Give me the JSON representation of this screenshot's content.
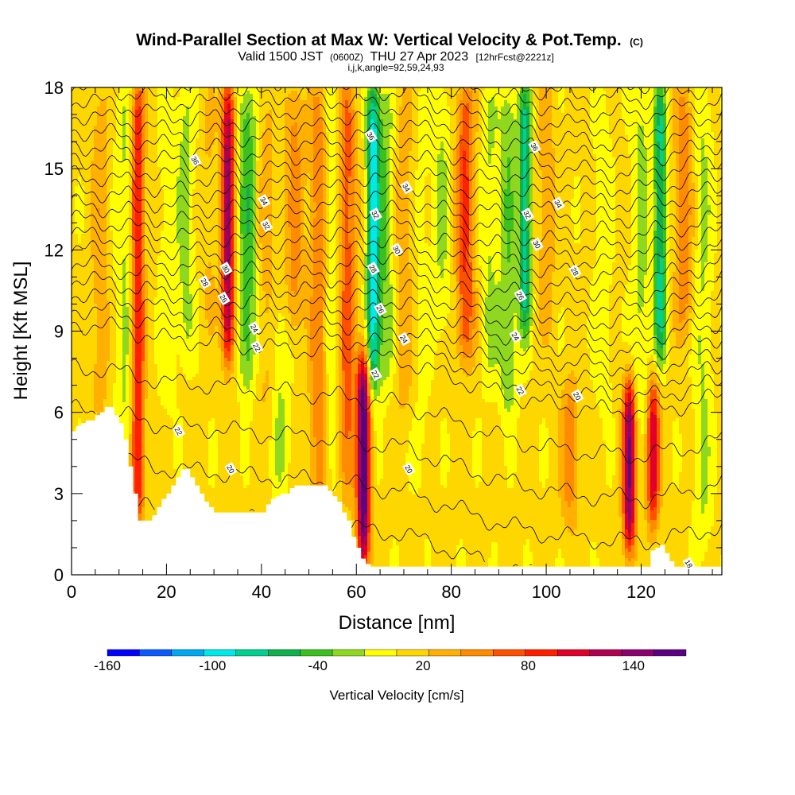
{
  "title": {
    "line1_main": "Wind-Parallel Section at Max W: Vertical Velocity & Pot.Temp.",
    "line1_mark": "(C)",
    "line2_part1": "Valid 1500 JST",
    "line2_part2": "(0600Z)",
    "line2_part3": "THU 27 Apr 2023",
    "line2_part4": "[12hrFcst@2221z]",
    "line3": "i,j,k,angle=92,59,24,93"
  },
  "chart_data": {
    "type": "heatmap",
    "xlabel": "Distance [nm]",
    "ylabel": "Height [Kft MSL]",
    "xlim": [
      0,
      137
    ],
    "ylim": [
      0,
      18
    ],
    "x_ticks": [
      0,
      20,
      40,
      60,
      80,
      100,
      120
    ],
    "x_tick_labels": [
      "0",
      "20",
      "40",
      "60",
      "80",
      "100",
      "120"
    ],
    "y_ticks": [
      0,
      3,
      6,
      9,
      12,
      15,
      18
    ],
    "y_tick_labels": [
      "0",
      "3",
      "6",
      "9",
      "12",
      "15",
      "18"
    ],
    "colorbar": {
      "title": "Vertical Velocity [cm/s]",
      "range": [
        -160,
        170
      ],
      "labels": [
        "-160",
        "-100",
        "-40",
        "20",
        "80",
        "140"
      ],
      "label_values": [
        -160,
        -100,
        -40,
        20,
        80,
        140
      ],
      "colors": [
        "#0000ff",
        "#0a5aff",
        "#00a8f0",
        "#00e8e8",
        "#00d090",
        "#10b050",
        "#3cc020",
        "#90d820",
        "#ffff00",
        "#ffd700",
        "#ffb000",
        "#ff8c00",
        "#ff5000",
        "#ff2000",
        "#e0002a",
        "#b00050",
        "#8c0070",
        "#5a0080"
      ]
    },
    "velocity_field": {
      "background_cm_s": 10,
      "cores": [
        {
          "x": 6,
          "z_from": 6,
          "z_to": 18,
          "w": 25
        },
        {
          "x": 11,
          "z_from": 4,
          "z_to": 18,
          "w": -25
        },
        {
          "x": 14,
          "z_from": 2,
          "z_to": 18,
          "w": 90
        },
        {
          "x": 20,
          "z_from": 6,
          "z_to": 18,
          "w": -15
        },
        {
          "x": 24,
          "z_from": 8,
          "z_to": 18,
          "w": -30
        },
        {
          "x": 29,
          "z_from": 9,
          "z_to": 18,
          "w": 15
        },
        {
          "x": 33,
          "z_from": 8,
          "z_to": 18,
          "w": 125
        },
        {
          "x": 37,
          "z_from": 7,
          "z_to": 18,
          "w": -55
        },
        {
          "x": 41,
          "z_from": 6,
          "z_to": 18,
          "w": 20
        },
        {
          "x": 44,
          "z_from": 3,
          "z_to": 10,
          "w": -25
        },
        {
          "x": 47,
          "z_from": 9,
          "z_to": 18,
          "w": 40
        },
        {
          "x": 52,
          "z_from": 2,
          "z_to": 18,
          "w": 45
        },
        {
          "x": 55,
          "z_from": 3,
          "z_to": 18,
          "w": -25
        },
        {
          "x": 58,
          "z_from": 3,
          "z_to": 18,
          "w": 60
        },
        {
          "x": 61.5,
          "z_from": 0.5,
          "z_to": 8,
          "w": 165
        },
        {
          "x": 63.5,
          "z_from": 7,
          "z_to": 18,
          "w": -105
        },
        {
          "x": 66,
          "z_from": 7,
          "z_to": 18,
          "w": -40
        },
        {
          "x": 70,
          "z_from": 6,
          "z_to": 18,
          "w": 25
        },
        {
          "x": 74,
          "z_from": 3,
          "z_to": 18,
          "w": -10
        },
        {
          "x": 78,
          "z_from": 9,
          "z_to": 18,
          "w": -25
        },
        {
          "x": 83,
          "z_from": 8,
          "z_to": 18,
          "w": 70
        },
        {
          "x": 88,
          "z_from": 7,
          "z_to": 18,
          "w": -25
        },
        {
          "x": 92,
          "z_from": 6,
          "z_to": 18,
          "w": -40
        },
        {
          "x": 95.5,
          "z_from": 9,
          "z_to": 18,
          "w": -85
        },
        {
          "x": 100,
          "z_from": 9,
          "z_to": 18,
          "w": 25
        },
        {
          "x": 105,
          "z_from": 2,
          "z_to": 7,
          "w": 45
        },
        {
          "x": 112,
          "z_from": 6,
          "z_to": 18,
          "w": -15
        },
        {
          "x": 117.5,
          "z_from": 1,
          "z_to": 7,
          "w": 140
        },
        {
          "x": 120,
          "z_from": 6,
          "z_to": 18,
          "w": -30
        },
        {
          "x": 122.5,
          "z_from": 2,
          "z_to": 7,
          "w": 105
        },
        {
          "x": 124,
          "z_from": 8,
          "z_to": 18,
          "w": -85
        },
        {
          "x": 129,
          "z_from": 9,
          "z_to": 18,
          "w": 45
        },
        {
          "x": 133,
          "z_from": 1,
          "z_to": 18,
          "w": -25
        }
      ]
    },
    "potential_temperature_contours": {
      "levels": [
        18,
        19,
        20,
        21,
        22,
        22.5,
        23,
        23.5,
        24,
        24.5,
        25,
        25.5,
        26,
        26.5,
        27,
        27.5,
        28,
        28.5,
        29,
        29.5,
        30,
        30.5,
        31,
        31.5,
        32,
        32.5,
        33,
        33.5,
        34,
        34.5,
        35,
        35.5,
        36,
        36.5,
        37
      ],
      "profile_x": [
        0,
        10,
        20,
        30,
        40,
        50,
        60,
        70,
        80,
        90,
        100,
        110,
        120,
        130,
        137
      ],
      "profile_height_at_level_22": [
        9.3,
        9.1,
        8.7,
        8.6,
        8.4,
        8.3,
        8.1,
        7.9,
        7.3,
        6.7,
        6.3,
        6.1,
        6.0,
        6.3,
        6.6
      ],
      "level_spacing_kft": 0.55
    },
    "terrain": {
      "x": [
        0,
        1,
        2,
        3,
        4,
        5,
        6,
        7,
        8,
        9,
        10,
        11,
        12,
        13,
        14,
        15,
        16,
        17,
        18,
        19,
        20,
        21,
        22,
        23,
        24,
        25,
        26,
        27,
        28,
        29,
        30,
        31,
        32,
        33,
        34,
        35,
        36,
        37,
        38,
        39,
        40,
        41,
        42,
        43,
        44,
        45,
        46,
        47,
        48,
        49,
        50,
        51,
        52,
        53,
        54,
        55,
        56,
        57,
        58,
        59,
        60,
        61,
        62,
        63,
        64,
        65,
        66,
        67,
        68,
        69,
        70,
        71,
        72,
        73,
        74,
        75,
        76,
        77,
        78,
        79,
        80,
        81,
        82,
        83,
        84,
        85,
        86,
        87,
        88,
        89,
        90,
        91,
        92,
        93,
        94,
        95,
        96,
        97,
        98,
        99,
        100,
        101,
        102,
        103,
        104,
        105,
        106,
        107,
        108,
        109,
        110,
        111,
        112,
        113,
        114,
        115,
        116,
        117,
        118,
        119,
        120,
        121,
        122,
        123,
        124,
        125,
        126,
        127,
        128,
        129,
        130,
        131,
        132,
        133,
        134,
        135,
        136,
        137
      ],
      "height_kft": [
        5.3,
        5.5,
        5.6,
        5.7,
        5.7,
        5.9,
        6.0,
        6.2,
        6.2,
        5.9,
        5.6,
        5.0,
        4.0,
        3.0,
        2.0,
        2.0,
        2.0,
        2.2,
        2.5,
        2.8,
        3.0,
        3.3,
        3.6,
        3.9,
        3.9,
        3.6,
        3.3,
        3.0,
        2.7,
        2.5,
        2.3,
        2.3,
        2.3,
        2.3,
        2.3,
        2.3,
        2.3,
        2.3,
        2.3,
        2.3,
        2.3,
        2.6,
        2.8,
        2.9,
        3.0,
        3.0,
        3.2,
        3.3,
        3.3,
        3.3,
        3.3,
        3.3,
        3.3,
        3.3,
        3.1,
        2.9,
        2.7,
        2.3,
        2.0,
        1.4,
        1.0,
        0.6,
        0.4,
        0.3,
        0.3,
        0.3,
        0.3,
        0.3,
        0.3,
        0.3,
        0.3,
        0.3,
        0.3,
        0.3,
        0.3,
        0.3,
        0.3,
        0.3,
        0.3,
        0.3,
        0.3,
        0.3,
        0.3,
        0.3,
        0.3,
        0.3,
        0.3,
        0.3,
        0.3,
        0.3,
        0.3,
        0.3,
        0.3,
        0.3,
        0.3,
        0.3,
        0.3,
        0.3,
        0.3,
        0.3,
        0.3,
        0.3,
        0.3,
        0.3,
        0.3,
        0.3,
        0.3,
        0.3,
        0.3,
        0.3,
        0.3,
        0.3,
        0.3,
        0.3,
        0.3,
        0.3,
        0.3,
        0.3,
        0.3,
        0.3,
        0.3,
        0.3,
        0.9,
        1.0,
        1.1,
        0.8,
        0.5,
        0.3,
        0.3,
        0.3,
        0.3,
        0.3,
        0.3,
        0.3,
        0.3,
        0.3,
        0.3,
        0.3
      ]
    },
    "contour_labels": [
      {
        "text": "36",
        "x": 26,
        "z": 15.3
      },
      {
        "text": "34",
        "x": 40.5,
        "z": 13.8
      },
      {
        "text": "32",
        "x": 41,
        "z": 12.9
      },
      {
        "text": "30",
        "x": 32.5,
        "z": 11.3
      },
      {
        "text": "28",
        "x": 28,
        "z": 10.8
      },
      {
        "text": "26",
        "x": 32,
        "z": 10.2
      },
      {
        "text": "24",
        "x": 38.5,
        "z": 9.1
      },
      {
        "text": "22",
        "x": 39,
        "z": 8.4
      },
      {
        "text": "22",
        "x": 22.5,
        "z": 5.3
      },
      {
        "text": "20",
        "x": 33.5,
        "z": 3.9
      },
      {
        "text": "36",
        "x": 63,
        "z": 16.2
      },
      {
        "text": "34",
        "x": 70.5,
        "z": 14.3
      },
      {
        "text": "32",
        "x": 64,
        "z": 13.3
      },
      {
        "text": "30",
        "x": 68.5,
        "z": 12.0
      },
      {
        "text": "28",
        "x": 63.5,
        "z": 11.3
      },
      {
        "text": "26",
        "x": 65,
        "z": 9.8
      },
      {
        "text": "24",
        "x": 70,
        "z": 8.7
      },
      {
        "text": "22",
        "x": 64,
        "z": 7.4
      },
      {
        "text": "20",
        "x": 71,
        "z": 3.9
      },
      {
        "text": "36",
        "x": 97.5,
        "z": 15.8
      },
      {
        "text": "34",
        "x": 102.5,
        "z": 13.7
      },
      {
        "text": "32",
        "x": 96,
        "z": 13.3
      },
      {
        "text": "30",
        "x": 98,
        "z": 12.2
      },
      {
        "text": "28",
        "x": 106,
        "z": 11.2
      },
      {
        "text": "26",
        "x": 94.5,
        "z": 10.3
      },
      {
        "text": "24",
        "x": 93.5,
        "z": 8.8
      },
      {
        "text": "22",
        "x": 94.5,
        "z": 6.8
      },
      {
        "text": "20",
        "x": 106.5,
        "z": 6.6
      },
      {
        "text": "18",
        "x": 130,
        "z": 0.4
      }
    ],
    "grid": false,
    "legend": "colorbar-bottom"
  }
}
